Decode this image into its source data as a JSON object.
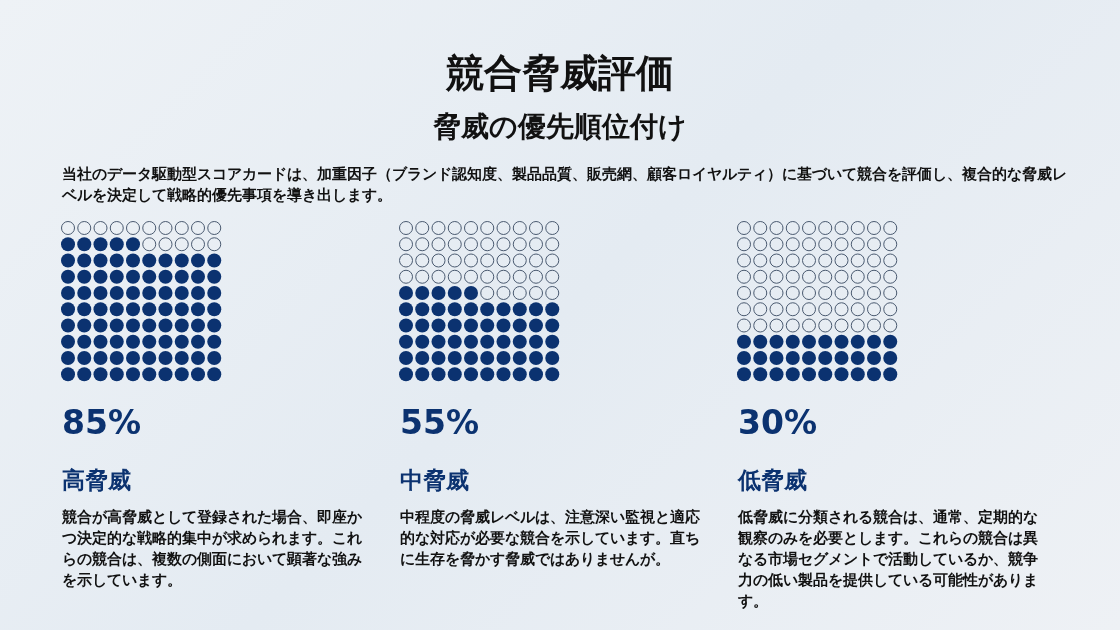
{
  "chart_data": [
    {
      "type": "other",
      "title": "競合脅威評価",
      "subtitle": "脅威の優先順位付け",
      "annotations": [
        "当社のデータ駆動型スコアカードは、加重因子（ブランド認知度、製品品質、販売網、顧客ロイヤルティ）に基づいて競合を評価し、複合的な脅威レベルを決定して戦略的優先事項を導き出します。"
      ]
    },
    {
      "type": "other",
      "title": "高脅威",
      "values": [
        85
      ],
      "value_labels": [
        "85%"
      ],
      "color": "#0b3270",
      "annotations": [
        "競合が高脅威として登録された場合、即座かつ決定的な戦略的集中が求められます。これらの競合は、複数の側面において顕著な強みを示しています。"
      ]
    },
    {
      "type": "other",
      "title": "中脅威",
      "values": [
        55
      ],
      "value_labels": [
        "55%"
      ],
      "color": "#0b3270",
      "annotations": [
        "中程度の脅威レベルは、注意深い監視と適応的な対応が必要な競合を示しています。直ちに生存を脅かす脅威ではありませんが。"
      ]
    },
    {
      "type": "other",
      "title": "低脅威",
      "values": [
        30
      ],
      "value_labels": [
        "30%"
      ],
      "color": "#0b3270",
      "annotations": [
        "低脅威に分類される競合は、通常、定期的な観察のみを必要とします。これらの競合は異なる市場セグメントで活動しているか、競争力の低い製品を提供している可能性があります。"
      ]
    }
  ]
}
